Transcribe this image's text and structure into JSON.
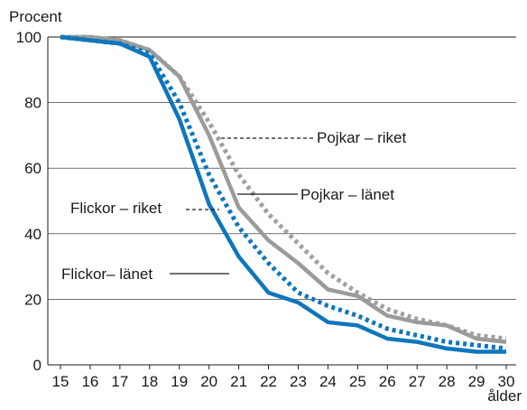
{
  "chart_data": {
    "type": "line",
    "ylabel": "Procent",
    "xlabel": "ålder",
    "xlim": [
      15,
      30
    ],
    "ylim": [
      0,
      100
    ],
    "x": [
      15,
      16,
      17,
      18,
      19,
      20,
      21,
      22,
      23,
      24,
      25,
      26,
      27,
      28,
      29,
      30
    ],
    "yticks": [
      "0",
      "20",
      "40",
      "60",
      "80",
      "100"
    ],
    "xticks": [
      "15",
      "16",
      "17",
      "18",
      "19",
      "20",
      "21",
      "22",
      "23",
      "24",
      "25",
      "26",
      "27",
      "28",
      "29",
      "30"
    ],
    "grid": "horizontal",
    "series": [
      {
        "name": "Pojkar – riket",
        "color": "#a0a0a0",
        "dashed": true,
        "values": [
          100,
          100,
          99,
          96,
          88,
          74,
          58,
          46,
          37,
          28,
          22,
          17,
          14,
          12,
          9,
          8
        ]
      },
      {
        "name": "Pojkar – länet",
        "color": "#9b9b9b",
        "dashed": false,
        "values": [
          100,
          100,
          99,
          96,
          88,
          70,
          48,
          38,
          31,
          23,
          21,
          15,
          13,
          12,
          8,
          7
        ]
      },
      {
        "name": "Flickor – riket",
        "color": "#0e76bc",
        "dashed": true,
        "values": [
          100,
          99,
          98,
          95,
          80,
          58,
          42,
          31,
          22,
          18,
          15,
          11,
          9,
          7,
          6,
          5
        ]
      },
      {
        "name": "Flickor– länet",
        "color": "#0e76bc",
        "dashed": false,
        "values": [
          100,
          99,
          98,
          94,
          75,
          49,
          33,
          22,
          19,
          13,
          12,
          8,
          7,
          5,
          4,
          4
        ]
      }
    ]
  }
}
